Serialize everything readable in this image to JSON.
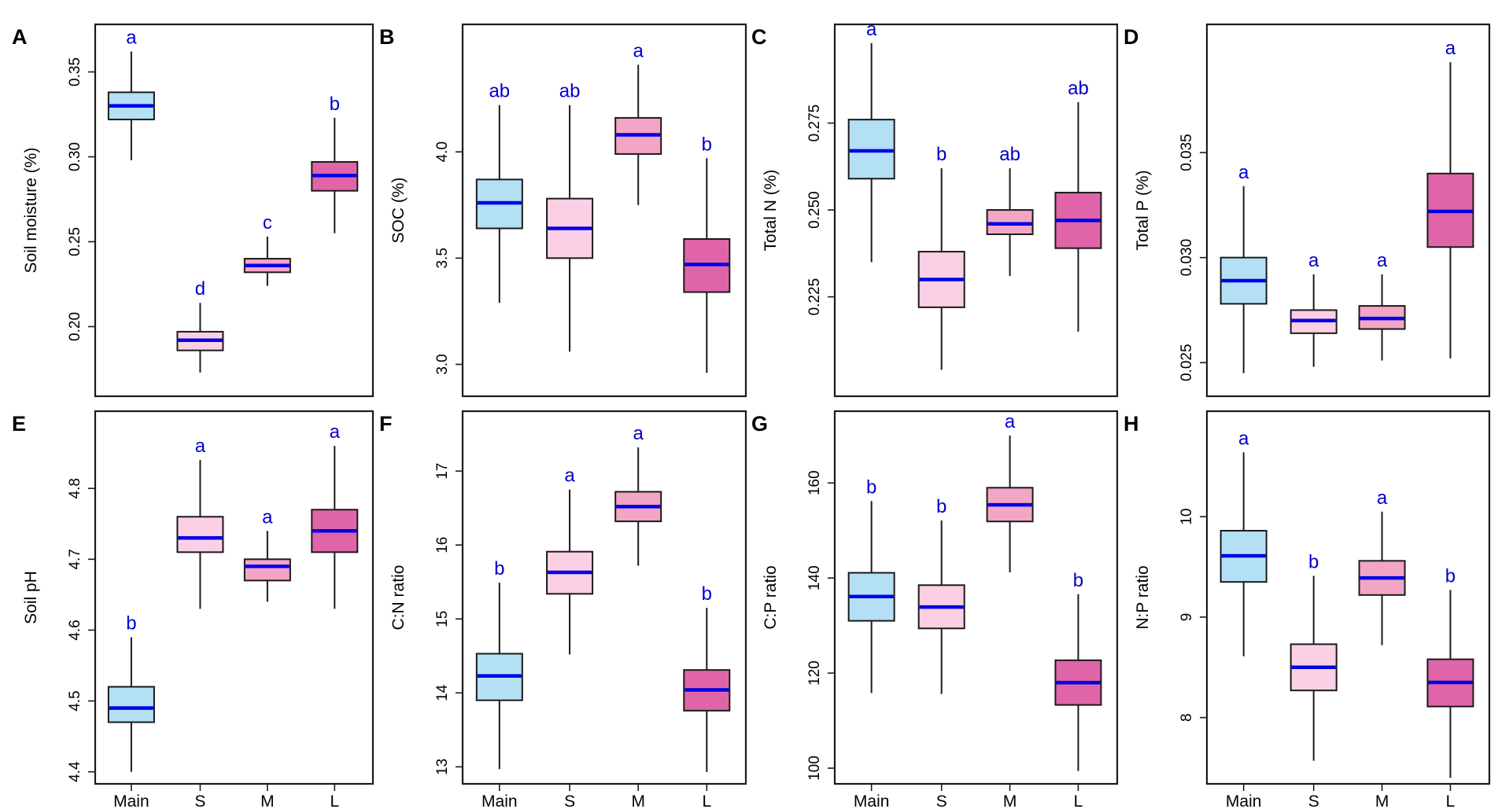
{
  "figure": {
    "categories": [
      "Main",
      "S",
      "M",
      "L"
    ],
    "colors": {
      "fills": [
        "#b3e0f5",
        "#fcd0e4",
        "#f3a5c6",
        "#e065a8"
      ],
      "median": "#0000e6",
      "letters": "#0000cc",
      "frame": "#1a1a1a",
      "text": "#000000"
    }
  },
  "chart_data": [
    {
      "panel": "A",
      "type": "boxplot",
      "ylabel": "Soil moisture (%)",
      "ylim": [
        0.159,
        0.378
      ],
      "yticks": [
        0.2,
        0.25,
        0.3,
        0.35
      ],
      "ytick_labels": [
        "0.20",
        "0.25",
        "0.30",
        "0.35"
      ],
      "xlabels": [],
      "boxes": [
        {
          "category": "Main",
          "min": 0.298,
          "q1": 0.322,
          "median": 0.33,
          "q3": 0.338,
          "max": 0.362,
          "letter": "a"
        },
        {
          "category": "S",
          "min": 0.173,
          "q1": 0.186,
          "median": 0.192,
          "q3": 0.197,
          "max": 0.214,
          "letter": "d"
        },
        {
          "category": "M",
          "min": 0.224,
          "q1": 0.232,
          "median": 0.236,
          "q3": 0.24,
          "max": 0.253,
          "letter": "c"
        },
        {
          "category": "L",
          "min": 0.255,
          "q1": 0.28,
          "median": 0.289,
          "q3": 0.297,
          "max": 0.323,
          "letter": "b"
        }
      ]
    },
    {
      "panel": "B",
      "type": "boxplot",
      "ylabel": "SOC (%)",
      "ylim": [
        2.85,
        4.6
      ],
      "yticks": [
        3.0,
        3.5,
        4.0
      ],
      "ytick_labels": [
        "3.0",
        "3.5",
        "4.0"
      ],
      "xlabels": [],
      "boxes": [
        {
          "category": "Main",
          "min": 3.29,
          "q1": 3.64,
          "median": 3.76,
          "q3": 3.87,
          "max": 4.22,
          "letter": "ab"
        },
        {
          "category": "S",
          "min": 3.06,
          "q1": 3.5,
          "median": 3.64,
          "q3": 3.78,
          "max": 4.22,
          "letter": "ab"
        },
        {
          "category": "M",
          "min": 3.75,
          "q1": 3.99,
          "median": 4.08,
          "q3": 4.16,
          "max": 4.41,
          "letter": "a"
        },
        {
          "category": "L",
          "min": 2.96,
          "q1": 3.34,
          "median": 3.47,
          "q3": 3.59,
          "max": 3.97,
          "letter": "b"
        }
      ]
    },
    {
      "panel": "C",
      "type": "boxplot",
      "ylabel": "Total N (%)",
      "ylim": [
        0.1964,
        0.3034
      ],
      "yticks": [
        0.225,
        0.25,
        0.275
      ],
      "ytick_labels": [
        "0.225",
        "0.250",
        "0.275"
      ],
      "xlabels": [],
      "boxes": [
        {
          "category": "Main",
          "min": 0.235,
          "q1": 0.259,
          "median": 0.267,
          "q3": 0.276,
          "max": 0.298,
          "letter": "a"
        },
        {
          "category": "S",
          "min": 0.204,
          "q1": 0.222,
          "median": 0.23,
          "q3": 0.238,
          "max": 0.262,
          "letter": "b"
        },
        {
          "category": "M",
          "min": 0.231,
          "q1": 0.243,
          "median": 0.246,
          "q3": 0.25,
          "max": 0.262,
          "letter": "ab"
        },
        {
          "category": "L",
          "min": 0.215,
          "q1": 0.239,
          "median": 0.247,
          "q3": 0.255,
          "max": 0.281,
          "letter": "ab"
        }
      ]
    },
    {
      "panel": "D",
      "type": "boxplot",
      "ylabel": "Total P (%)",
      "ylim": [
        0.0234,
        0.0411
      ],
      "yticks": [
        0.025,
        0.03,
        0.035
      ],
      "ytick_labels": [
        "0.025",
        "0.030",
        "0.035"
      ],
      "xlabels": [],
      "boxes": [
        {
          "category": "Main",
          "min": 0.0245,
          "q1": 0.0278,
          "median": 0.0289,
          "q3": 0.03,
          "max": 0.0334,
          "letter": "a"
        },
        {
          "category": "S",
          "min": 0.0248,
          "q1": 0.0264,
          "median": 0.027,
          "q3": 0.0275,
          "max": 0.0292,
          "letter": "a"
        },
        {
          "category": "M",
          "min": 0.0251,
          "q1": 0.0266,
          "median": 0.0271,
          "q3": 0.0277,
          "max": 0.0292,
          "letter": "a"
        },
        {
          "category": "L",
          "min": 0.0252,
          "q1": 0.0305,
          "median": 0.0322,
          "q3": 0.034,
          "max": 0.0393,
          "letter": "a"
        }
      ]
    },
    {
      "panel": "E",
      "type": "boxplot",
      "ylabel": "Soil pH",
      "ylim": [
        4.383,
        4.909
      ],
      "yticks": [
        4.4,
        4.5,
        4.6,
        4.7,
        4.8
      ],
      "ytick_labels": [
        "4.4",
        "4.5",
        "4.6",
        "4.7",
        "4.8"
      ],
      "xlabels": [
        "Main",
        "S",
        "M",
        "L"
      ],
      "boxes": [
        {
          "category": "Main",
          "min": 4.4,
          "q1": 4.47,
          "median": 4.49,
          "q3": 4.52,
          "max": 4.59,
          "letter": "b"
        },
        {
          "category": "S",
          "min": 4.63,
          "q1": 4.71,
          "median": 4.73,
          "q3": 4.76,
          "max": 4.84,
          "letter": "a"
        },
        {
          "category": "M",
          "min": 4.64,
          "q1": 4.67,
          "median": 4.69,
          "q3": 4.7,
          "max": 4.74,
          "letter": "a"
        },
        {
          "category": "L",
          "min": 4.63,
          "q1": 4.71,
          "median": 4.74,
          "q3": 4.77,
          "max": 4.86,
          "letter": "a"
        }
      ]
    },
    {
      "panel": "F",
      "type": "boxplot",
      "ylabel": "C:N ratio",
      "ylim": [
        12.77,
        17.81
      ],
      "yticks": [
        13,
        14,
        15,
        16,
        17
      ],
      "ytick_labels": [
        "13",
        "14",
        "15",
        "16",
        "17"
      ],
      "xlabels": [
        "Main",
        "S",
        "M",
        "L"
      ],
      "boxes": [
        {
          "category": "Main",
          "min": 12.97,
          "q1": 13.9,
          "median": 14.23,
          "q3": 14.53,
          "max": 15.49,
          "letter": "b"
        },
        {
          "category": "S",
          "min": 14.52,
          "q1": 15.34,
          "median": 15.63,
          "q3": 15.91,
          "max": 16.75,
          "letter": "a"
        },
        {
          "category": "M",
          "min": 15.72,
          "q1": 16.32,
          "median": 16.52,
          "q3": 16.72,
          "max": 17.32,
          "letter": "a"
        },
        {
          "category": "L",
          "min": 12.93,
          "q1": 13.76,
          "median": 14.04,
          "q3": 14.31,
          "max": 15.15,
          "letter": "b"
        }
      ]
    },
    {
      "panel": "G",
      "type": "boxplot",
      "ylabel": "C:P ratio",
      "ylim": [
        96.7,
        175.1
      ],
      "yticks": [
        100,
        120,
        140,
        160
      ],
      "ytick_labels": [
        "100",
        "120",
        "140",
        "160"
      ],
      "xlabels": [
        "Main",
        "S",
        "M",
        "L"
      ],
      "boxes": [
        {
          "category": "Main",
          "min": 115.8,
          "q1": 131.0,
          "median": 136.1,
          "q3": 141.1,
          "max": 156.2,
          "letter": "b"
        },
        {
          "category": "S",
          "min": 115.6,
          "q1": 129.4,
          "median": 133.9,
          "q3": 138.5,
          "max": 152.1,
          "letter": "b"
        },
        {
          "category": "M",
          "min": 141.2,
          "q1": 151.9,
          "median": 155.4,
          "q3": 159.0,
          "max": 170.0,
          "letter": "a"
        },
        {
          "category": "L",
          "min": 99.4,
          "q1": 113.3,
          "median": 118.0,
          "q3": 122.7,
          "max": 136.6,
          "letter": "b"
        }
      ]
    },
    {
      "panel": "H",
      "type": "boxplot",
      "ylabel": "N:P ratio",
      "ylim": [
        7.34,
        11.05
      ],
      "yticks": [
        8,
        9,
        10
      ],
      "ytick_labels": [
        "8",
        "9",
        "10"
      ],
      "xlabels": [
        "Main",
        "S",
        "M",
        "L"
      ],
      "boxes": [
        {
          "category": "Main",
          "min": 8.61,
          "q1": 9.35,
          "median": 9.61,
          "q3": 9.86,
          "max": 10.64,
          "letter": "a"
        },
        {
          "category": "S",
          "min": 7.57,
          "q1": 8.27,
          "median": 8.5,
          "q3": 8.73,
          "max": 9.41,
          "letter": "b"
        },
        {
          "category": "M",
          "min": 8.72,
          "q1": 9.22,
          "median": 9.39,
          "q3": 9.56,
          "max": 10.05,
          "letter": "a"
        },
        {
          "category": "L",
          "min": 7.4,
          "q1": 8.11,
          "median": 8.35,
          "q3": 8.58,
          "max": 9.27,
          "letter": "b"
        }
      ]
    }
  ]
}
